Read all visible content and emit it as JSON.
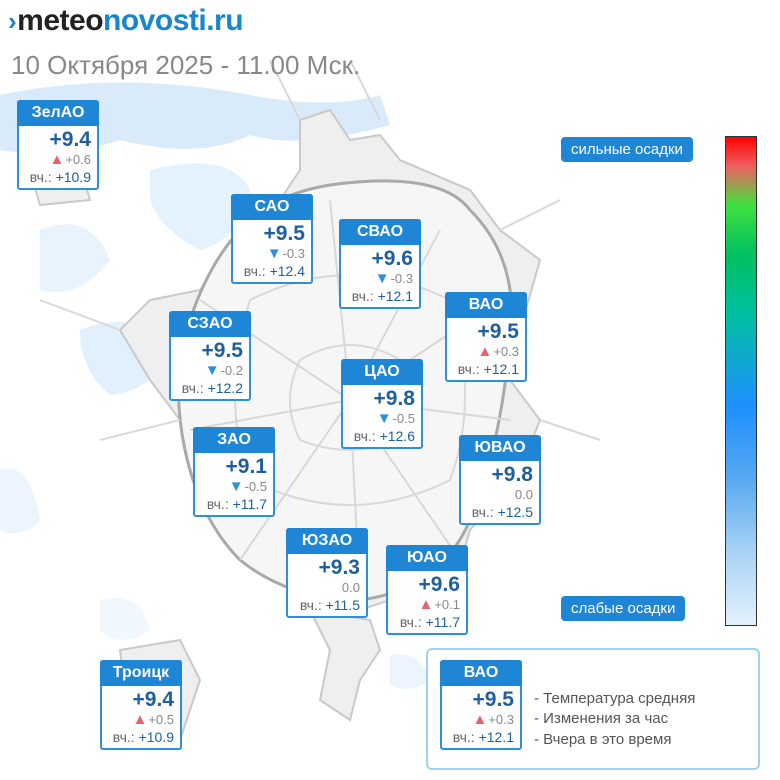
{
  "header": {
    "brand_part1": "meteo",
    "brand_part2": "novosti.ru",
    "subtitle": "10 Октября 2025 - 11.00 Мск."
  },
  "districts": [
    {
      "name": "ЗелАО",
      "temp": "+9.4",
      "dir": "up",
      "change": "+0.6",
      "yesterday_label": "вч.:",
      "yesterday": "+10.9"
    },
    {
      "name": "САО",
      "temp": "+9.5",
      "dir": "down",
      "change": "-0.3",
      "yesterday_label": "вч.:",
      "yesterday": "+12.4"
    },
    {
      "name": "СВАО",
      "temp": "+9.6",
      "dir": "down",
      "change": "-0.3",
      "yesterday_label": "вч.:",
      "yesterday": "+12.1"
    },
    {
      "name": "ВАО",
      "temp": "+9.5",
      "dir": "up",
      "change": "+0.3",
      "yesterday_label": "вч.:",
      "yesterday": "+12.1"
    },
    {
      "name": "СЗАО",
      "temp": "+9.5",
      "dir": "down",
      "change": "-0.2",
      "yesterday_label": "вч.:",
      "yesterday": "+12.2"
    },
    {
      "name": "ЦАО",
      "temp": "+9.8",
      "dir": "down",
      "change": "-0.5",
      "yesterday_label": "вч.:",
      "yesterday": "+12.6"
    },
    {
      "name": "ЗАО",
      "temp": "+9.1",
      "dir": "down",
      "change": "-0.5",
      "yesterday_label": "вч.:",
      "yesterday": "+11.7"
    },
    {
      "name": "ЮВАО",
      "temp": "+9.8",
      "dir": "none",
      "change": "0.0",
      "yesterday_label": "вч.:",
      "yesterday": "+12.5"
    },
    {
      "name": "ЮЗАО",
      "temp": "+9.3",
      "dir": "none",
      "change": "0.0",
      "yesterday_label": "вч.:",
      "yesterday": "+11.5"
    },
    {
      "name": "ЮАО",
      "temp": "+9.6",
      "dir": "up",
      "change": "+0.1",
      "yesterday_label": "вч.:",
      "yesterday": "+11.7"
    },
    {
      "name": "Троицк",
      "temp": "+9.4",
      "dir": "up",
      "change": "+0.5",
      "yesterday_label": "вч.:",
      "yesterday": "+10.9"
    }
  ],
  "precip_scale": {
    "top_label": "сильные осадки",
    "bottom_label": "слабые осадки",
    "colors": [
      "#ff0000",
      "#40e040",
      "#1e90ff",
      "#e4f1fc"
    ]
  },
  "legend": {
    "sample": {
      "name": "ВАО",
      "temp": "+9.5",
      "dir": "up",
      "change": "+0.3",
      "yesterday_label": "вч.:",
      "yesterday": "+12.1"
    },
    "items": [
      "- Температура средняя",
      "- Изменения за час",
      "- Вчера в это время"
    ]
  },
  "colors": {
    "accent": "#1f86d6",
    "up": "#e8616b",
    "down": "#2e8fdc",
    "map_fill": "#efefef",
    "precip_light": "#d2e8fb"
  }
}
